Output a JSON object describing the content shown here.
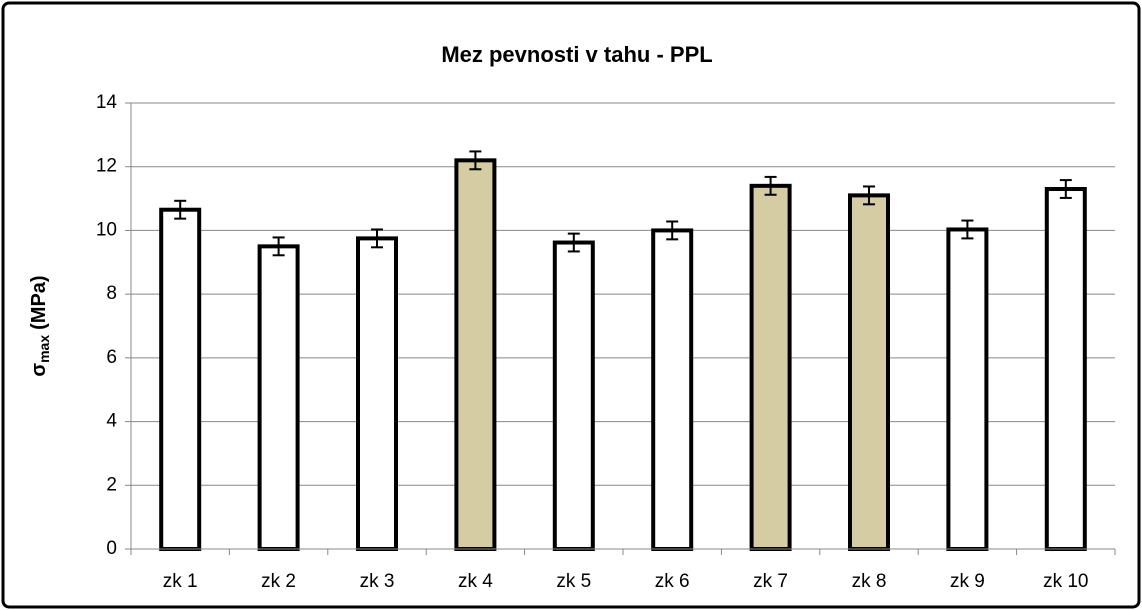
{
  "chart_data": {
    "type": "bar",
    "title": "Mez pevnosti v tahu - PPL",
    "y_label": {
      "symbol": "σ",
      "subscript": "max",
      "unit": "(MPa)"
    },
    "categories": [
      "zk 1",
      "zk 2",
      "zk 3",
      "zk 4",
      "zk 5",
      "zk 6",
      "zk 7",
      "zk 8",
      "zk 9",
      "zk 10"
    ],
    "values": [
      10.65,
      9.5,
      9.75,
      12.2,
      9.62,
      10.0,
      11.4,
      11.1,
      10.03,
      11.3
    ],
    "errors": [
      0.28,
      0.28,
      0.28,
      0.28,
      0.28,
      0.28,
      0.28,
      0.28,
      0.28,
      0.28
    ],
    "colors": [
      "#ffffff",
      "#ffffff",
      "#ffffff",
      "#d6cca3",
      "#ffffff",
      "#ffffff",
      "#d6cca3",
      "#d6cca3",
      "#ffffff",
      "#ffffff"
    ],
    "ylim": [
      0,
      14
    ],
    "yticks": [
      0,
      2,
      4,
      6,
      8,
      10,
      12,
      14
    ],
    "grid": true
  }
}
